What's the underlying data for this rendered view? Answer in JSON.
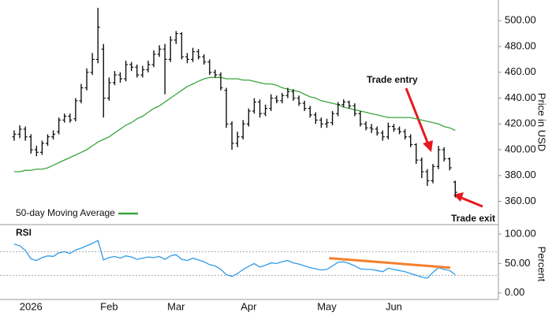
{
  "chart_data": [
    {
      "type": "ohlc",
      "ylabel": "Price in USD",
      "color": "#111111",
      "ylim": [
        342,
        513
      ],
      "yticks": [
        {
          "value": 360,
          "label": "360.00"
        },
        {
          "value": 380,
          "label": "380.00"
        },
        {
          "value": 400,
          "label": "400.00"
        },
        {
          "value": 420,
          "label": "420.00"
        },
        {
          "value": 440,
          "label": "440.00"
        },
        {
          "value": 460,
          "label": "460.00"
        },
        {
          "value": 480,
          "label": "480.00"
        },
        {
          "value": 500,
          "label": "500.00"
        }
      ],
      "open": [
        410,
        412,
        416,
        410,
        400,
        398,
        405,
        410,
        414,
        423,
        426,
        424,
        438,
        448,
        460,
        470,
        478,
        440,
        452,
        458,
        455,
        466,
        464,
        458,
        462,
        466,
        474,
        478,
        470,
        485,
        490,
        472,
        470,
        476,
        472,
        468,
        460,
        458,
        446,
        420,
        405,
        410,
        420,
        430,
        437,
        428,
        432,
        440,
        438,
        442,
        445,
        440,
        436,
        432,
        427,
        423,
        420,
        421,
        428,
        435,
        437,
        434,
        428,
        420,
        417,
        416,
        413,
        410,
        418,
        416,
        414,
        410,
        404,
        392,
        383,
        376,
        387,
        400,
        393,
        375
      ],
      "high": [
        415,
        419,
        418,
        412,
        403,
        407,
        412,
        415,
        425,
        428,
        428,
        440,
        451,
        463,
        475,
        510,
        482,
        456,
        461,
        460,
        469,
        468,
        466,
        465,
        469,
        477,
        481,
        482,
        488,
        492,
        491,
        475,
        479,
        478,
        474,
        470,
        462,
        460,
        448,
        422,
        414,
        423,
        432,
        440,
        439,
        435,
        443,
        442,
        444,
        448,
        447,
        442,
        438,
        434,
        429,
        425,
        424,
        430,
        437,
        439,
        438,
        436,
        430,
        422,
        420,
        418,
        415,
        421,
        420,
        418,
        416,
        412,
        405,
        394,
        385,
        389,
        403,
        402,
        394,
        376
      ],
      "low": [
        407,
        409,
        407,
        397,
        395,
        396,
        403,
        408,
        412,
        421,
        421,
        422,
        436,
        446,
        458,
        467,
        425,
        438,
        450,
        452,
        453,
        461,
        456,
        456,
        460,
        464,
        472,
        443,
        468,
        482,
        470,
        467,
        468,
        470,
        466,
        458,
        456,
        446,
        417,
        400,
        402,
        408,
        418,
        428,
        425,
        426,
        430,
        436,
        436,
        440,
        438,
        434,
        430,
        425,
        420,
        417,
        417,
        419,
        426,
        433,
        432,
        426,
        418,
        415,
        413,
        411,
        407,
        408,
        414,
        412,
        408,
        402,
        389,
        378,
        372,
        374,
        385,
        391,
        384,
        363
      ],
      "close": [
        412,
        416,
        410,
        400,
        398,
        405,
        410,
        412,
        423,
        426,
        423,
        438,
        448,
        460,
        470,
        495,
        440,
        452,
        458,
        455,
        466,
        464,
        458,
        462,
        466,
        474,
        478,
        470,
        485,
        490,
        472,
        470,
        476,
        472,
        468,
        460,
        458,
        448,
        420,
        405,
        410,
        420,
        430,
        437,
        428,
        432,
        440,
        438,
        442,
        445,
        440,
        436,
        432,
        427,
        423,
        420,
        421,
        428,
        435,
        437,
        434,
        428,
        420,
        417,
        416,
        413,
        410,
        418,
        416,
        414,
        410,
        404,
        392,
        383,
        376,
        387,
        400,
        393,
        386,
        367
      ],
      "series": [
        {
          "name": "50-day Moving Average",
          "color": "#3aa53a",
          "values": [
            383,
            383,
            384,
            384,
            385,
            385,
            386,
            388,
            390,
            392,
            394,
            396,
            398,
            400,
            403,
            406,
            408,
            410,
            413,
            416,
            419,
            421,
            424,
            426,
            429,
            432,
            434,
            437,
            440,
            443,
            446,
            449,
            451,
            453,
            455,
            456,
            456,
            456,
            455,
            455,
            455,
            454,
            454,
            453,
            452,
            451,
            451,
            450,
            448,
            447,
            446,
            445,
            443,
            441,
            440,
            438,
            437,
            436,
            435,
            433,
            432,
            431,
            430,
            429,
            428,
            427,
            426,
            425,
            425,
            425,
            425,
            425,
            424,
            423,
            422,
            421,
            420,
            418,
            417,
            415
          ]
        }
      ],
      "annotations": [
        {
          "text": "Trade entry"
        },
        {
          "text": "Trade exit"
        }
      ],
      "annotation_color": "#e5191f"
    },
    {
      "type": "line",
      "title": "RSI",
      "ylabel": "Percent",
      "categories": [
        null,
        null,
        null,
        "2026",
        null,
        null,
        null,
        null,
        null,
        null,
        null,
        null,
        null,
        null,
        null,
        null,
        null,
        "Feb",
        null,
        null,
        null,
        null,
        null,
        null,
        null,
        null,
        null,
        null,
        null,
        "Mar",
        null,
        null,
        null,
        null,
        null,
        null,
        null,
        null,
        null,
        null,
        null,
        null,
        "Apr",
        null,
        null,
        null,
        null,
        null,
        null,
        null,
        null,
        null,
        null,
        null,
        null,
        null,
        "May",
        null,
        null,
        null,
        null,
        null,
        null,
        null,
        null,
        null,
        null,
        null,
        "Jun",
        null,
        null,
        null,
        null,
        null,
        null,
        null,
        null,
        null,
        null,
        null
      ],
      "ylim": [
        -11,
        112
      ],
      "yticks": [
        {
          "value": 0,
          "label": "0.00"
        },
        {
          "value": 50,
          "label": "50.00"
        },
        {
          "value": 100,
          "label": "100.00"
        }
      ],
      "reference_lines": [
        70,
        30
      ],
      "series": [
        {
          "color": "#2f9be6",
          "values": [
            83,
            80,
            72,
            58,
            55,
            60,
            63,
            62,
            68,
            70,
            67,
            73,
            76,
            80,
            84,
            89,
            56,
            60,
            62,
            59,
            63,
            61,
            57,
            59,
            61,
            60,
            62,
            57,
            63,
            65,
            57,
            55,
            59,
            56,
            53,
            48,
            46,
            40,
            31,
            28,
            33,
            40,
            45,
            50,
            44,
            47,
            51,
            50,
            53,
            55,
            51,
            49,
            46,
            43,
            41,
            39,
            40,
            46,
            52,
            53,
            50,
            46,
            41,
            40,
            40,
            38,
            36,
            42,
            40,
            38,
            36,
            33,
            30,
            27,
            25,
            35,
            43,
            40,
            38,
            31
          ]
        }
      ],
      "trendline": {
        "color": "#f4802a",
        "x": [
          56.4,
          78.1
        ],
        "values": [
          59,
          43
        ]
      }
    }
  ]
}
